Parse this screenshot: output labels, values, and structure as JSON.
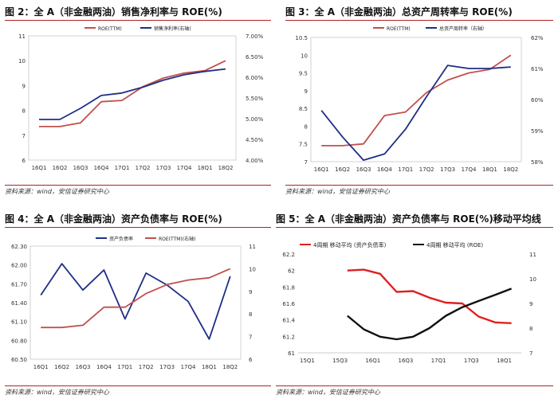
{
  "source_note": "资料来源：wind，安信证券研究中心",
  "chart_data": [
    {
      "type": "line",
      "title": "图 2：全 A（非金融两油）销售净利率与 ROE(%)",
      "categories": [
        "16Q1",
        "16Q2",
        "16Q3",
        "16Q4",
        "17Q1",
        "17Q2",
        "17Q3",
        "17Q4",
        "18Q1",
        "18Q2"
      ],
      "series": [
        {
          "name": "ROE(TTM)",
          "axis": "left",
          "color": "#c0504d",
          "values": [
            7.35,
            7.35,
            7.5,
            8.35,
            8.4,
            8.95,
            9.3,
            9.5,
            9.6,
            10.0
          ]
        },
        {
          "name": "销售净利率(右轴)",
          "axis": "right",
          "color": "#1f2e86",
          "values": [
            4.98,
            4.98,
            5.25,
            5.56,
            5.62,
            5.76,
            5.93,
            6.06,
            6.14,
            6.2
          ]
        }
      ],
      "left_ticks": [
        "6",
        "7",
        "8",
        "9",
        "10",
        "11"
      ],
      "right_ticks": [
        "4.00%",
        "4.50%",
        "5.00%",
        "5.50%",
        "6.00%",
        "6.50%",
        "7.00%"
      ],
      "ylim_left": [
        6,
        11
      ],
      "ylim_right": [
        4.0,
        7.0
      ]
    },
    {
      "type": "line",
      "title": "图 3：全 A（非金融两油）总资产周转率与 ROE(%)",
      "categories": [
        "16Q1",
        "16Q2",
        "16Q3",
        "16Q4",
        "17Q1",
        "17Q2",
        "17Q3",
        "17Q4",
        "18Q1",
        "18Q2"
      ],
      "series": [
        {
          "name": "ROE(TTM)",
          "axis": "left",
          "color": "#c0504d",
          "values": [
            7.45,
            7.45,
            7.5,
            8.3,
            8.4,
            8.95,
            9.3,
            9.5,
            9.6,
            10.0
          ]
        },
        {
          "name": "总资产周转率（右轴）",
          "axis": "right",
          "color": "#1f2e86",
          "values": [
            59.65,
            58.8,
            58.05,
            58.25,
            59.05,
            60.1,
            61.1,
            61.0,
            61.0,
            61.05
          ]
        }
      ],
      "left_ticks": [
        "7",
        "7.5",
        "8",
        "8.5",
        "9",
        "9.5",
        "10",
        "10.5"
      ],
      "right_ticks": [
        "58%",
        "59%",
        "60%",
        "61%",
        "62%"
      ],
      "ylim_left": [
        7,
        10.5
      ],
      "ylim_right": [
        58,
        62
      ]
    },
    {
      "type": "line",
      "title": "图 4：全 A（非金融两油）资产负债率与 ROE(%)",
      "categories": [
        "16Q1",
        "16Q2",
        "16Q3",
        "16Q4",
        "17Q1",
        "17Q2",
        "17Q3",
        "17Q4",
        "18Q1",
        "18Q2"
      ],
      "series": [
        {
          "name": "资产负债率",
          "axis": "left",
          "color": "#1f2e86",
          "values": [
            61.52,
            62.02,
            61.6,
            61.92,
            61.14,
            61.87,
            61.68,
            61.42,
            60.82,
            61.82
          ]
        },
        {
          "name": "ROE(TTM)(右轴)",
          "axis": "right",
          "color": "#c0504d",
          "values": [
            7.4,
            7.4,
            7.5,
            8.3,
            8.3,
            8.9,
            9.3,
            9.5,
            9.6,
            10.0
          ]
        }
      ],
      "left_ticks": [
        "60.50",
        "60.80",
        "61.10",
        "61.40",
        "61.70",
        "62.00",
        "62.30"
      ],
      "right_ticks": [
        "6",
        "7",
        "8",
        "9",
        "10",
        "11"
      ],
      "ylim_left": [
        60.5,
        62.3
      ],
      "ylim_right": [
        6,
        11
      ]
    },
    {
      "type": "line",
      "title": "图 5：全 A（非金融两油）资产负债率与 ROE(%)移动平均线",
      "x_ticks": [
        "15Q1",
        "15Q3",
        "16Q1",
        "16Q3",
        "17Q1",
        "17Q3",
        "18Q1"
      ],
      "x_positions": [
        0,
        2,
        4,
        6,
        8,
        10,
        12
      ],
      "x_range": [
        0,
        13.6
      ],
      "series": [
        {
          "name": "4周期 移动平均 (资产负债率)",
          "axis": "left",
          "color": "#e02020",
          "x": [
            3,
            4,
            5,
            6,
            7,
            8,
            9,
            10,
            11,
            12,
            13
          ],
          "values": [
            62.0,
            62.01,
            61.96,
            61.74,
            61.75,
            61.67,
            61.61,
            61.6,
            61.44,
            61.37,
            61.36
          ]
        },
        {
          "name": "4周期 移动平均 (ROE)",
          "axis": "right",
          "color": "#111111",
          "x": [
            3,
            4,
            5,
            6,
            7,
            8,
            9,
            10,
            11,
            12,
            13
          ],
          "values": [
            8.5,
            7.95,
            7.65,
            7.55,
            7.65,
            8.0,
            8.5,
            8.85,
            9.1,
            9.35,
            9.6
          ]
        }
      ],
      "left_ticks": [
        "61",
        "61.2",
        "61.4",
        "61.6",
        "61.8",
        "62",
        "62.2"
      ],
      "right_ticks": [
        "7",
        "8",
        "9",
        "10",
        "11"
      ],
      "ylim_left": [
        61,
        62.2
      ],
      "ylim_right": [
        7,
        11
      ]
    }
  ]
}
